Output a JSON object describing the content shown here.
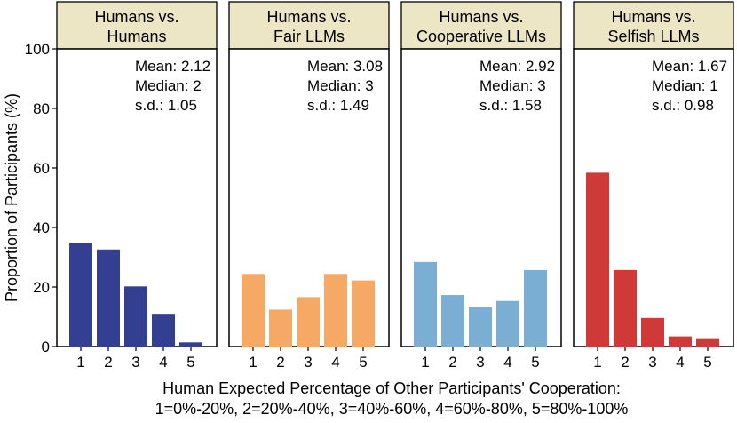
{
  "chart_data": {
    "type": "bar",
    "ylabel": "Proportion of Participants (%)",
    "xlabel_line1": "Human Expected Percentage of Other Participants' Cooperation:",
    "xlabel_line2": "1=0%-20%, 2=20%-40%, 3=40%-60%, 4=60%-80%, 5=80%-100%",
    "ylim": [
      0,
      100
    ],
    "yticks": [
      0,
      20,
      40,
      60,
      80,
      100
    ],
    "categories": [
      "1",
      "2",
      "3",
      "4",
      "5"
    ],
    "strip_color": "#ede6c4",
    "panels": [
      {
        "title_line1": "Humans vs.",
        "title_line2": "Humans",
        "color": "#333f91",
        "values": [
          34.8,
          32.6,
          20.2,
          11.0,
          1.4
        ],
        "stats": [
          "Mean: 2.12",
          "Median: 2",
          "s.d.: 1.05"
        ]
      },
      {
        "title_line1": "Humans vs.",
        "title_line2": "Fair LLMs",
        "color": "#f6a865",
        "values": [
          24.4,
          12.4,
          16.6,
          24.4,
          22.2
        ],
        "stats": [
          "Mean: 3.08",
          "Median: 3",
          "s.d.: 1.49"
        ]
      },
      {
        "title_line1": "Humans vs.",
        "title_line2": "Cooperative LLMs",
        "color": "#7aaed3",
        "values": [
          28.4,
          17.3,
          13.2,
          15.3,
          25.7
        ],
        "stats": [
          "Mean: 2.92",
          "Median: 3",
          "s.d.: 1.58"
        ]
      },
      {
        "title_line1": "Humans vs.",
        "title_line2": "Selfish LLMs",
        "color": "#cf3a38",
        "values": [
          58.4,
          25.7,
          9.6,
          3.4,
          2.8
        ],
        "stats": [
          "Mean: 1.67",
          "Median: 1",
          "s.d.: 0.98"
        ]
      }
    ]
  }
}
